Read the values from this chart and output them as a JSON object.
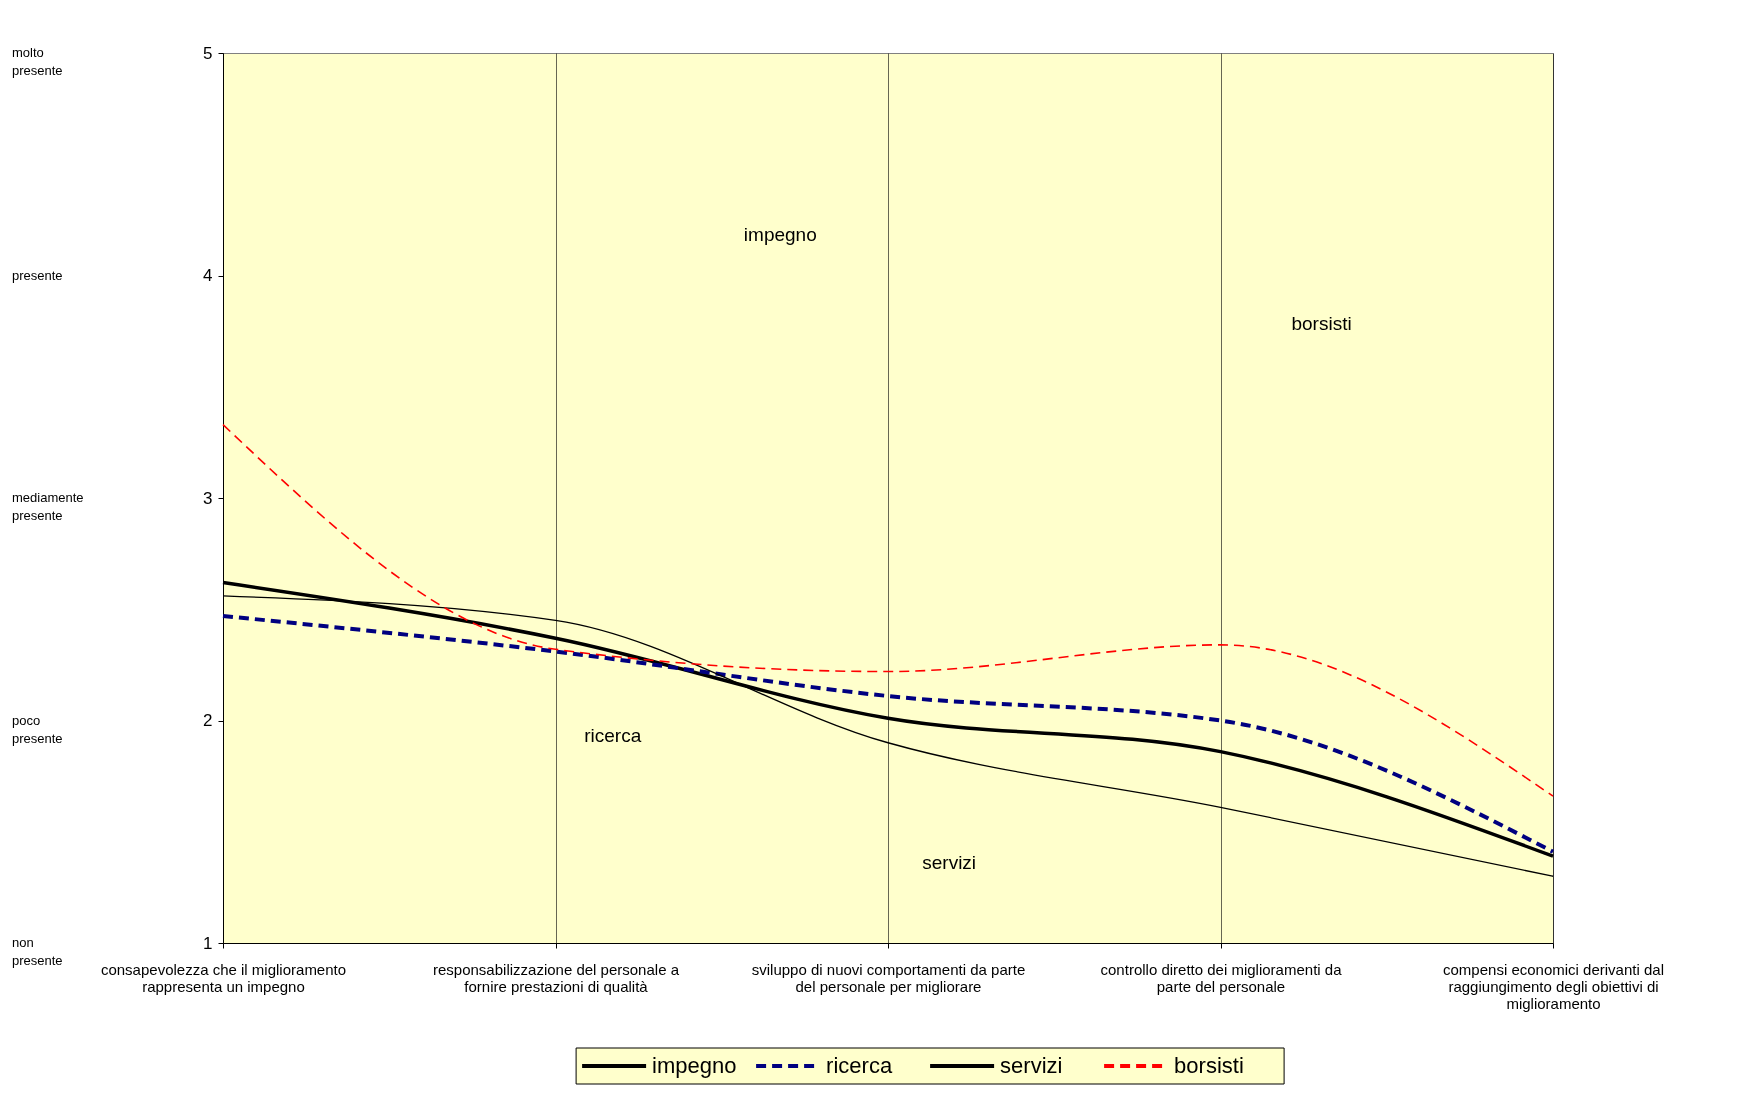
{
  "chart_data": {
    "type": "line",
    "categories": [
      "consapevolezza che il miglioramento rappresenta un impegno",
      "responsabilizzazione del personale a fornire prestazioni di qualità",
      "sviluppo di nuovi comportamenti da parte del personale per migliorare",
      "controllo diretto dei miglioramenti da parte del personale",
      "compensi economici derivanti dal raggiungimento degli obiettivi di miglioramento"
    ],
    "series": [
      {
        "name": "impegno",
        "color": "#000000",
        "line_style": "solid",
        "values": [
          2.62,
          2.37,
          2.01,
          1.86,
          1.39
        ]
      },
      {
        "name": "ricerca",
        "color": "#000080",
        "line_style": "dashed",
        "values": [
          2.47,
          2.31,
          2.11,
          2.0,
          1.41
        ]
      },
      {
        "name": "servizi",
        "color": "#000000",
        "line_style": "solid",
        "values": [
          2.56,
          2.45,
          1.9,
          1.61,
          1.3
        ]
      },
      {
        "name": "borsisti",
        "color": "#ff0000",
        "line_style": "dashed",
        "values": [
          3.33,
          2.32,
          2.22,
          2.34,
          1.66
        ]
      }
    ],
    "ylim": [
      1,
      5
    ],
    "yticks": [
      1,
      2,
      3,
      4,
      5
    ],
    "annotations": [
      "molto presente",
      "presente",
      "mediamente presente",
      "poco presente",
      "non presente",
      "impegno",
      "borsisti",
      "ricerca",
      "servizi"
    ],
    "grid": "x",
    "legend": "bottom",
    "marker": "none"
  }
}
